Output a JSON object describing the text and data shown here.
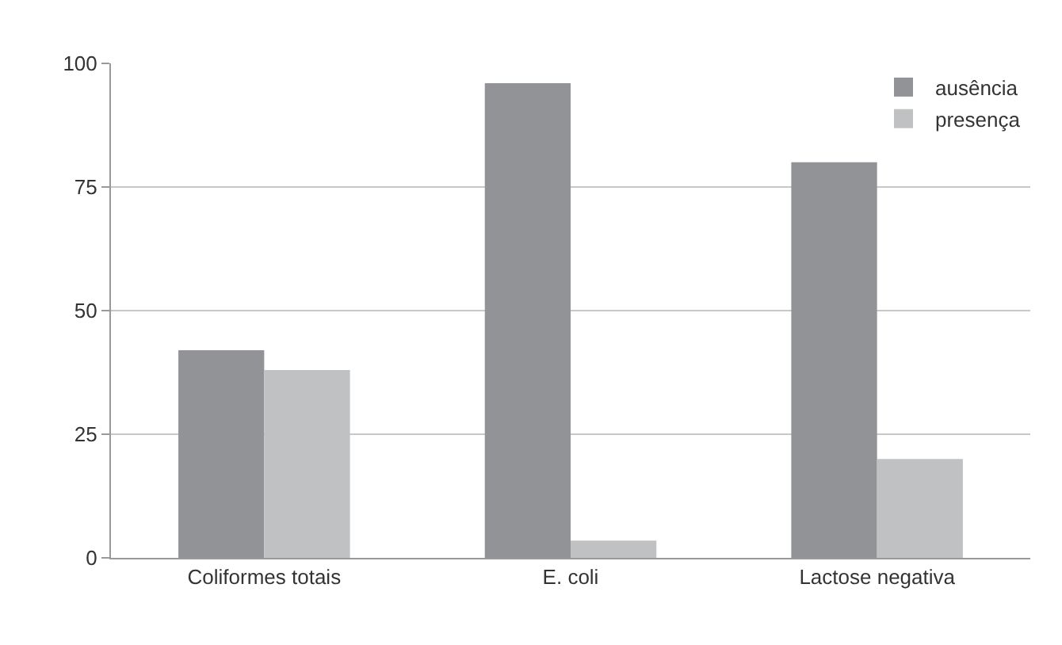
{
  "chart_data": {
    "type": "bar",
    "categories": [
      "Coliformes totais",
      "E. coli",
      "Lactose negativa"
    ],
    "series": [
      {
        "name": "ausência",
        "color": "#929397",
        "values": [
          42,
          96,
          80
        ]
      },
      {
        "name": "presença",
        "color": "#c0c1c3",
        "values": [
          38,
          3.5,
          20
        ]
      }
    ],
    "ylim": [
      0,
      100
    ],
    "yticks": [
      0,
      25,
      50,
      75,
      100
    ],
    "grid": "y",
    "legend": "top right"
  }
}
